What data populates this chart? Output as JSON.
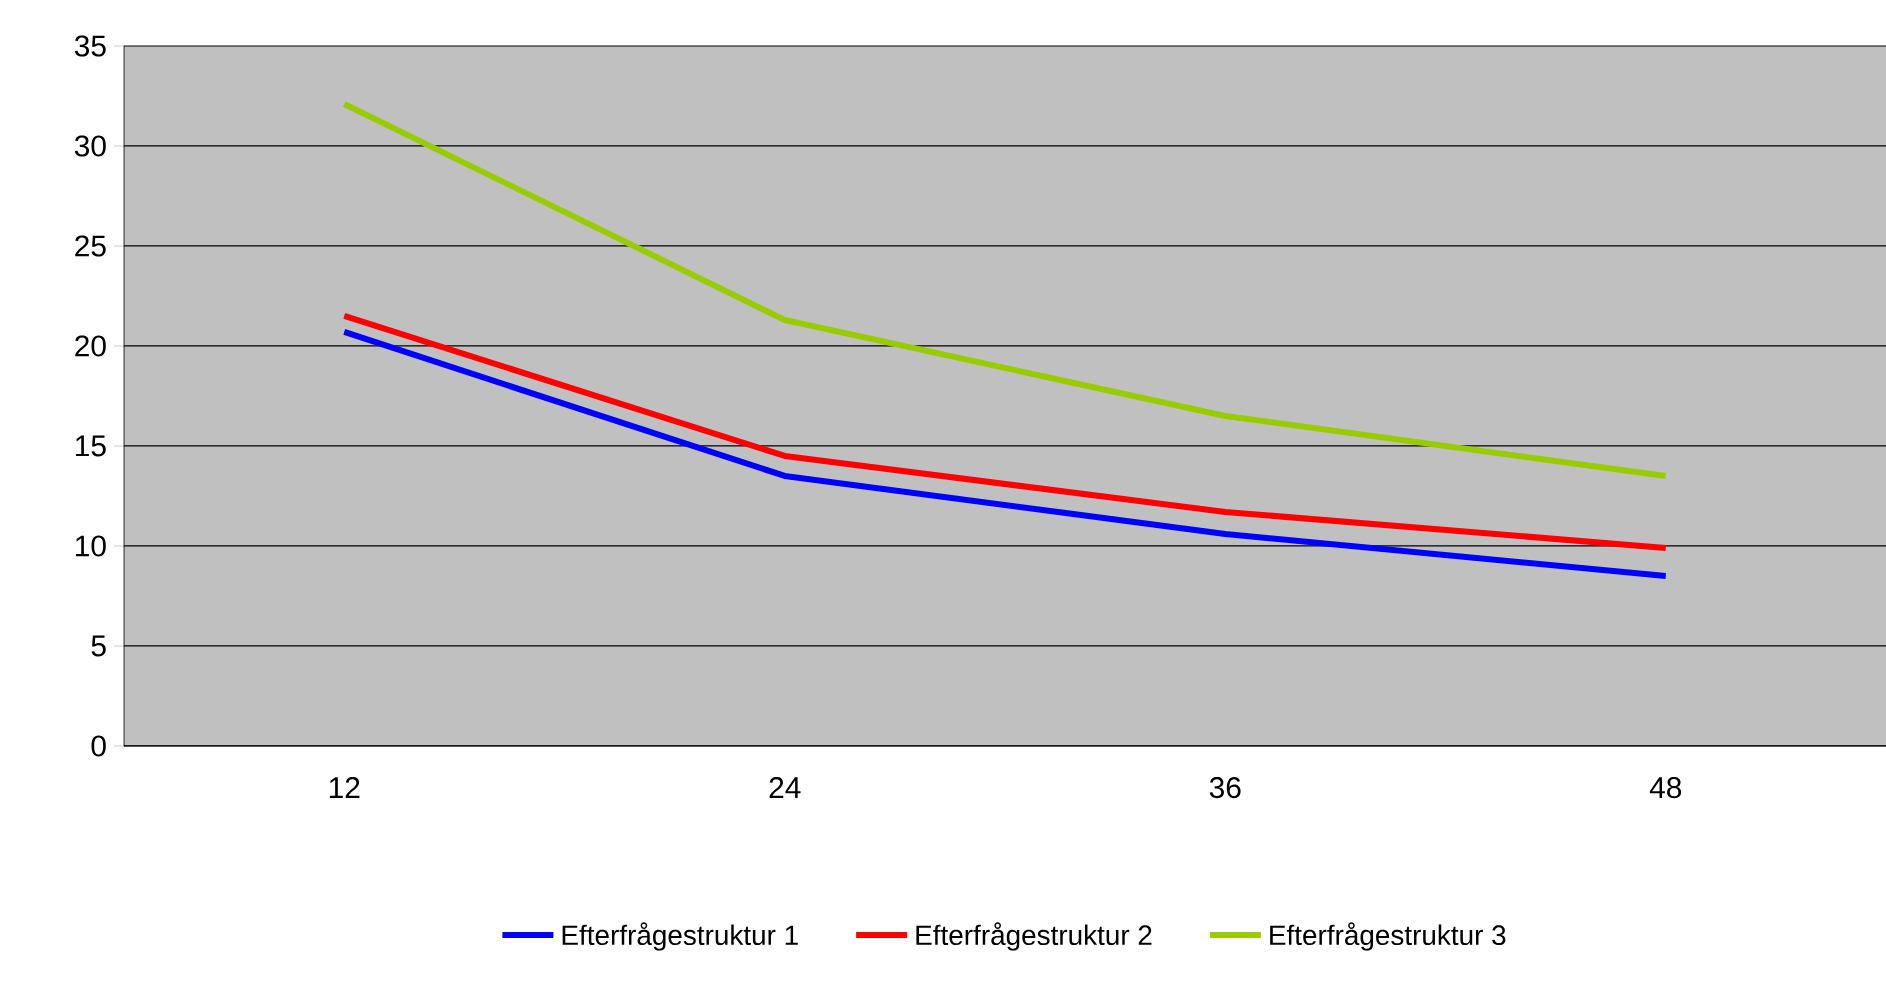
{
  "chart_data": {
    "type": "line",
    "categories": [
      "12",
      "24",
      "36",
      "48"
    ],
    "series": [
      {
        "name": "Efterfrågestruktur 1",
        "color": "#0000ff",
        "values": [
          20.7,
          13.5,
          10.6,
          8.5
        ]
      },
      {
        "name": "Efterfrågestruktur 2",
        "color": "#ff0000",
        "values": [
          21.5,
          14.5,
          11.7,
          9.9
        ]
      },
      {
        "name": "Efterfrågestruktur 3",
        "color": "#99cc00",
        "values": [
          32.1,
          21.3,
          16.5,
          13.5
        ]
      }
    ],
    "ylim": [
      0,
      35
    ],
    "yticks": [
      0,
      5,
      10,
      15,
      20,
      25,
      30,
      35
    ],
    "grid": "y",
    "legend": "bottom",
    "marker": "none",
    "line_style": "solid"
  }
}
